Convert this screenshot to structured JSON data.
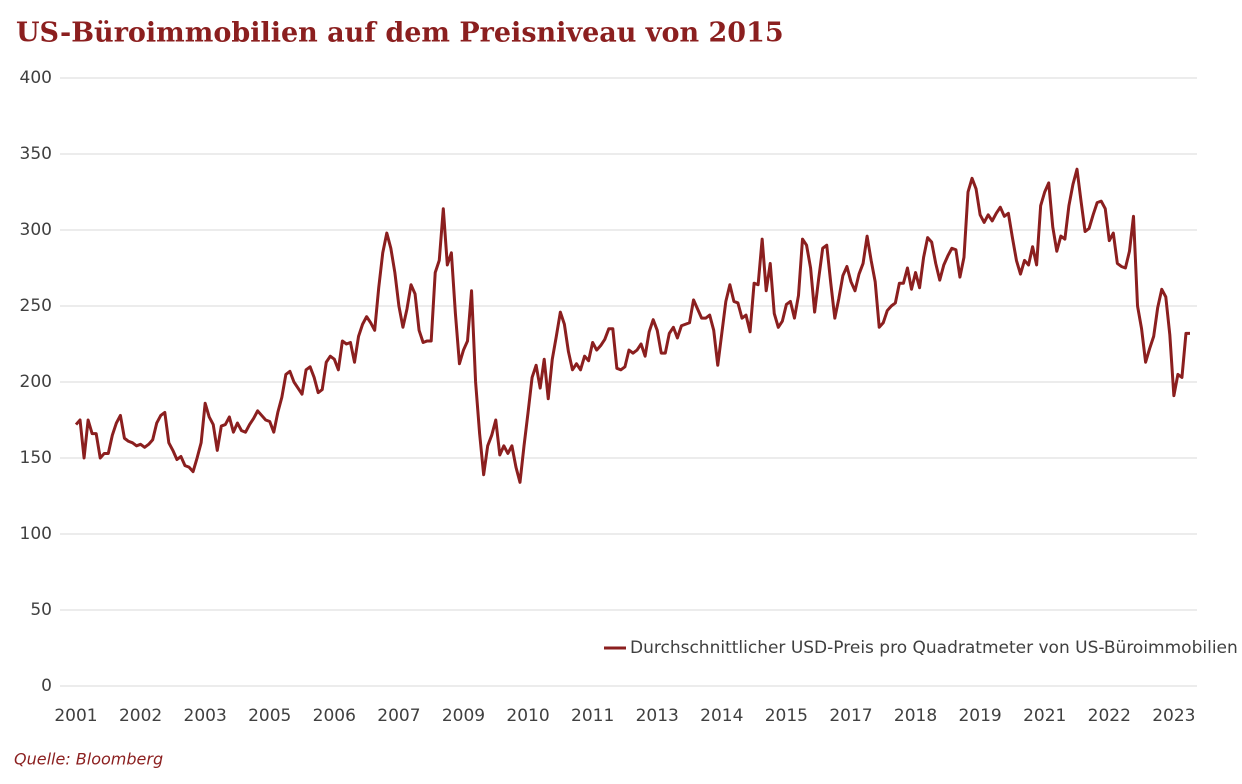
{
  "chart_data": {
    "type": "line",
    "title": "US-Büroimmobilien auf dem Preisniveau von 2015",
    "source": "Quelle: Bloomberg",
    "categories": [
      "2001",
      null,
      null,
      null,
      null,
      null,
      null,
      null,
      null,
      null,
      null,
      null,
      null,
      null,
      null,
      null,
      "2002",
      null,
      null,
      null,
      null,
      null,
      null,
      null,
      null,
      null,
      null,
      null,
      null,
      null,
      null,
      null,
      "2003",
      null,
      null,
      null,
      null,
      null,
      null,
      null,
      null,
      null,
      null,
      null,
      null,
      null,
      null,
      null,
      "2005",
      null,
      null,
      null,
      null,
      null,
      null,
      null,
      null,
      null,
      null,
      null,
      null,
      null,
      null,
      null,
      "2006",
      null,
      null,
      null,
      null,
      null,
      null,
      null,
      null,
      null,
      null,
      null,
      null,
      null,
      null,
      null,
      "2007",
      null,
      null,
      null,
      null,
      null,
      null,
      null,
      null,
      null,
      null,
      null,
      null,
      null,
      null,
      null,
      "2009",
      null,
      null,
      null,
      null,
      null,
      null,
      null,
      null,
      null,
      null,
      null,
      null,
      null,
      null,
      null,
      "2010",
      null,
      null,
      null,
      null,
      null,
      null,
      null,
      null,
      null,
      null,
      null,
      null,
      null,
      null,
      null,
      "2011",
      null,
      null,
      null,
      null,
      null,
      null,
      null,
      null,
      null,
      null,
      null,
      null,
      null,
      null,
      null,
      "2013",
      null,
      null,
      null,
      null,
      null,
      null,
      null,
      null,
      null,
      null,
      null,
      null,
      null,
      null,
      null,
      "2014",
      null,
      null,
      null,
      null,
      null,
      null,
      null,
      null,
      null,
      null,
      null,
      null,
      null,
      null,
      null,
      "2015",
      null,
      null,
      null,
      null,
      null,
      null,
      null,
      null,
      null,
      null,
      null,
      null,
      null,
      null,
      null,
      "2017",
      null,
      null,
      null,
      null,
      null,
      null,
      null,
      null,
      null,
      null,
      null,
      null,
      null,
      null,
      null,
      "2018",
      null,
      null,
      null,
      null,
      null,
      null,
      null,
      null,
      null,
      null,
      null,
      null,
      null,
      null,
      null,
      "2019",
      null,
      null,
      null,
      null,
      null,
      null,
      null,
      null,
      null,
      null,
      null,
      null,
      null,
      null,
      null,
      "2021",
      null,
      null,
      null,
      null,
      null,
      null,
      null,
      null,
      null,
      null,
      null,
      null,
      null,
      null,
      null,
      "2022",
      null,
      null,
      null,
      null,
      null,
      null,
      null,
      null,
      null,
      null,
      null,
      null,
      null,
      null,
      null,
      "2023",
      null,
      null,
      null,
      null
    ],
    "series": [
      {
        "name": "Durchschnittlicher USD-Preis pro Quadratmeter von US-Büroimmobilien",
        "color": "#8b1f1f",
        "values": [
          172,
          175,
          150,
          175,
          166,
          166,
          150,
          153,
          153,
          165,
          173,
          178,
          163,
          161,
          160,
          158,
          159,
          157,
          159,
          162,
          173,
          178,
          180,
          160,
          155,
          149,
          151,
          145,
          144,
          141,
          150,
          160,
          186,
          177,
          172,
          155,
          171,
          172,
          177,
          167,
          173,
          168,
          167,
          172,
          176,
          181,
          178,
          175,
          174,
          167,
          180,
          190,
          205,
          207,
          200,
          196,
          192,
          208,
          210,
          203,
          193,
          195,
          213,
          217,
          215,
          208,
          227,
          225,
          226,
          213,
          230,
          238,
          243,
          239,
          234,
          262,
          285,
          298,
          288,
          272,
          250,
          236,
          248,
          264,
          258,
          234,
          226,
          227,
          227,
          272,
          280,
          314,
          277,
          285,
          245,
          212,
          221,
          227,
          260,
          200,
          166,
          139,
          158,
          165,
          175,
          152,
          158,
          153,
          158,
          144,
          134,
          158,
          180,
          203,
          211,
          196,
          215,
          189,
          215,
          230,
          246,
          238,
          220,
          208,
          212,
          208,
          217,
          214,
          226,
          221,
          224,
          228,
          235,
          235,
          209,
          208,
          210,
          221,
          219,
          221,
          225,
          217,
          233,
          241,
          234,
          219,
          219,
          232,
          236,
          229,
          237,
          238,
          239,
          254,
          248,
          242,
          242,
          244,
          234,
          211,
          232,
          253,
          264,
          253,
          252,
          242,
          244,
          233,
          265,
          264,
          294,
          260,
          278,
          245,
          236,
          240,
          251,
          253,
          242,
          257,
          294,
          290,
          275,
          246,
          268,
          288,
          290,
          265,
          242,
          255,
          270,
          276,
          266,
          260,
          271,
          278,
          296,
          280,
          266,
          236,
          239,
          247,
          250,
          252,
          265,
          265,
          275,
          261,
          272,
          262,
          282,
          295,
          292,
          278,
          267,
          277,
          283,
          288,
          287,
          269,
          282,
          325,
          334,
          327,
          310,
          305,
          310,
          306,
          311,
          315,
          309,
          311,
          295,
          280,
          271,
          280,
          277,
          289,
          277,
          316,
          325,
          331,
          302,
          286,
          296,
          294,
          316,
          330,
          340,
          319,
          299,
          301,
          310,
          318,
          319,
          314,
          293,
          298,
          278,
          276,
          275,
          286,
          309,
          250,
          235,
          213,
          222,
          230,
          249,
          261,
          256,
          231,
          191,
          205,
          203,
          232,
          232
        ]
      }
    ],
    "ylim": [
      0,
      400
    ],
    "yticks": [
      0,
      50,
      100,
      150,
      200,
      250,
      300,
      350,
      400
    ],
    "grid": true,
    "legend": "lower right"
  }
}
